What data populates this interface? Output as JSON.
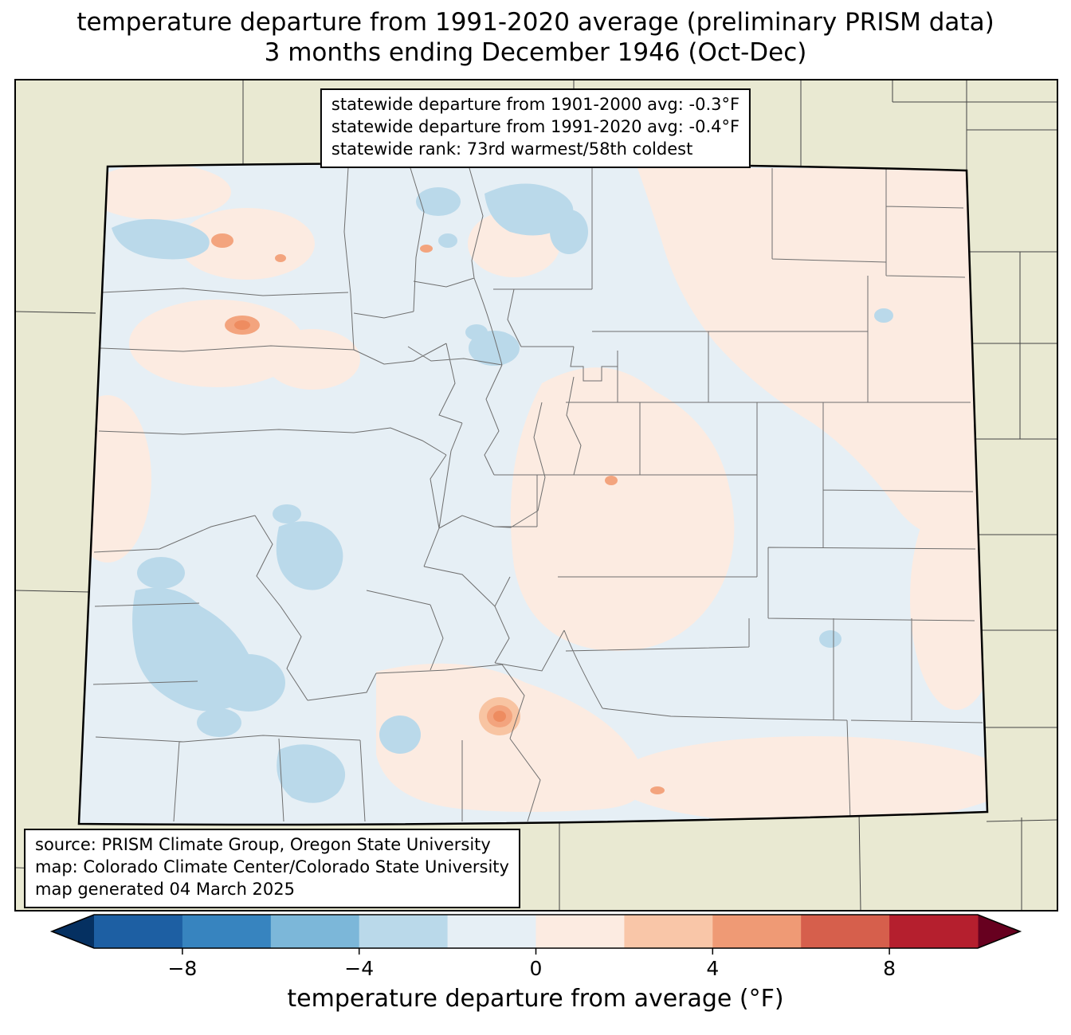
{
  "title": {
    "line1": "temperature departure from 1991-2020 average (preliminary PRISM data)",
    "line2": "3 months ending December 1946 (Oct-Dec)"
  },
  "stats_box": {
    "lines": [
      "statewide departure from 1901-2000 avg: -0.3°F",
      "statewide departure from 1991-2020 avg: -0.4°F",
      "statewide rank: 73rd warmest/58th coldest"
    ]
  },
  "source_box": {
    "lines": [
      "source: PRISM Climate Group, Oregon State University",
      "map: Colorado Climate Center/Colorado State University",
      "map generated 04 March 2025"
    ]
  },
  "colorbar": {
    "label": "temperature departure from average (°F)",
    "range": [
      -10,
      10
    ],
    "tick_values": [
      -8,
      -4,
      0,
      4,
      8
    ],
    "tick_labels": [
      "−8",
      "−4",
      "0",
      "4",
      "8"
    ],
    "segment_colors": [
      "#1d5fa3",
      "#3784bf",
      "#7cb7d9",
      "#bad9ea",
      "#e6eff5",
      "#fcebe1",
      "#f9c6a8",
      "#ef9a75",
      "#d65f4c",
      "#b51f2e"
    ],
    "under_arrow_color": "#053061",
    "over_arrow_color": "#67001f"
  },
  "colors": {
    "map_bg": "#e9e9d2",
    "state_base": "#e6eff5",
    "pink": "#fcebe1",
    "blue_light": "#bad9ea",
    "orange": "#f3a47e",
    "orange_dark": "#ee8c60",
    "peach": "#f8c4a2",
    "county_line": "#6e6e6e",
    "neighbor_line": "#444444",
    "state_border": "#000000"
  }
}
